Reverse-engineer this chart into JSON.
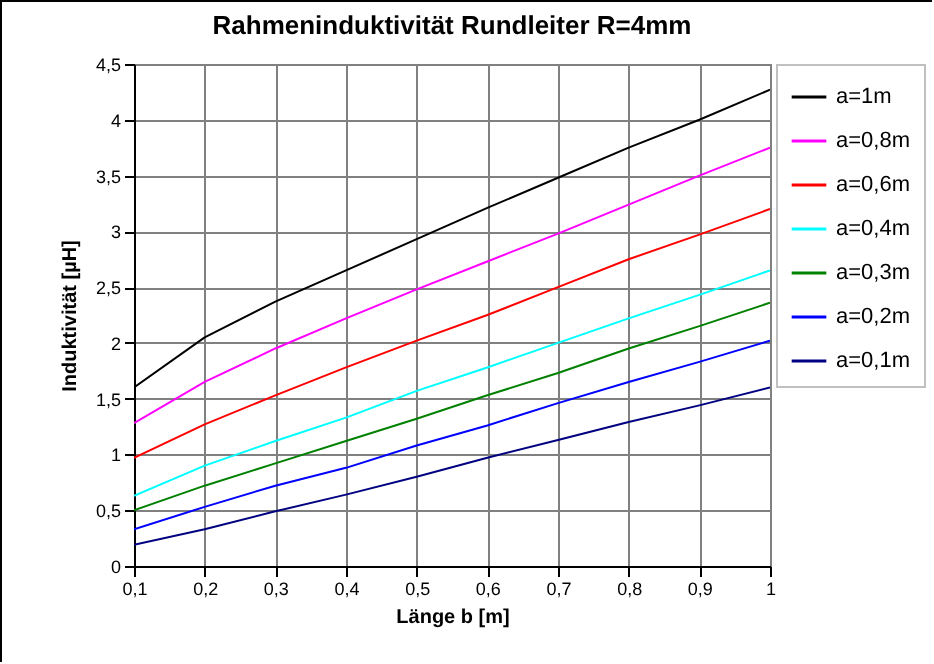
{
  "chart_data": {
    "type": "line",
    "title": "Rahmeninduktivität Rundleiter R=4mm",
    "xlabel": "Länge b [m]",
    "ylabel": "Induktivität [µH]",
    "x": [
      0.1,
      0.2,
      0.3,
      0.4,
      0.5,
      0.6,
      0.7,
      0.8,
      0.9,
      1
    ],
    "series": [
      {
        "name": "a=1m",
        "color": "#000000",
        "values": [
          1.6,
          2.05,
          2.37,
          2.65,
          2.93,
          3.21,
          3.48,
          3.75,
          4.0,
          4.27
        ]
      },
      {
        "name": "a=0,8m",
        "color": "#ff00ff",
        "values": [
          1.28,
          1.65,
          1.95,
          2.22,
          2.48,
          2.73,
          2.98,
          3.24,
          3.5,
          3.75
        ]
      },
      {
        "name": "a=0,6m",
        "color": "#ff0000",
        "values": [
          0.97,
          1.27,
          1.53,
          1.78,
          2.02,
          2.25,
          2.5,
          2.75,
          2.97,
          3.2
        ]
      },
      {
        "name": "a=0,4m",
        "color": "#00ffff",
        "values": [
          0.63,
          0.9,
          1.12,
          1.33,
          1.57,
          1.78,
          2.0,
          2.22,
          2.43,
          2.65
        ]
      },
      {
        "name": "a=0,3m",
        "color": "#008000",
        "values": [
          0.5,
          0.72,
          0.92,
          1.12,
          1.32,
          1.53,
          1.73,
          1.95,
          2.15,
          2.36
        ]
      },
      {
        "name": "a=0,2m",
        "color": "#0000ff",
        "values": [
          0.33,
          0.53,
          0.72,
          0.88,
          1.08,
          1.26,
          1.46,
          1.65,
          1.83,
          2.02
        ]
      },
      {
        "name": "a=0,1m",
        "color": "#000080",
        "values": [
          0.19,
          0.33,
          0.49,
          0.64,
          0.8,
          0.97,
          1.13,
          1.29,
          1.44,
          1.6
        ]
      }
    ],
    "xlim": [
      0.1,
      1
    ],
    "xticks": [
      {
        "value": 0.1,
        "label": "0,1"
      },
      {
        "value": 0.2,
        "label": "0,2"
      },
      {
        "value": 0.3,
        "label": "0,3"
      },
      {
        "value": 0.4,
        "label": "0,4"
      },
      {
        "value": 0.5,
        "label": "0,5"
      },
      {
        "value": 0.6,
        "label": "0,6"
      },
      {
        "value": 0.7,
        "label": "0,7"
      },
      {
        "value": 0.8,
        "label": "0,8"
      },
      {
        "value": 0.9,
        "label": "0,9"
      },
      1
    ],
    "ylim": [
      0,
      4.5
    ],
    "yticks": [
      0,
      {
        "value": 0.5,
        "label": "0,5"
      },
      1,
      {
        "value": 1.5,
        "label": "1,5"
      },
      2,
      {
        "value": 2.5,
        "label": "2,5"
      },
      3,
      {
        "value": 3.5,
        "label": "3,5"
      },
      4,
      {
        "value": 4.5,
        "label": "4,5"
      }
    ],
    "grid": true,
    "legend": "right",
    "marker": "none",
    "line_style": "solid"
  }
}
